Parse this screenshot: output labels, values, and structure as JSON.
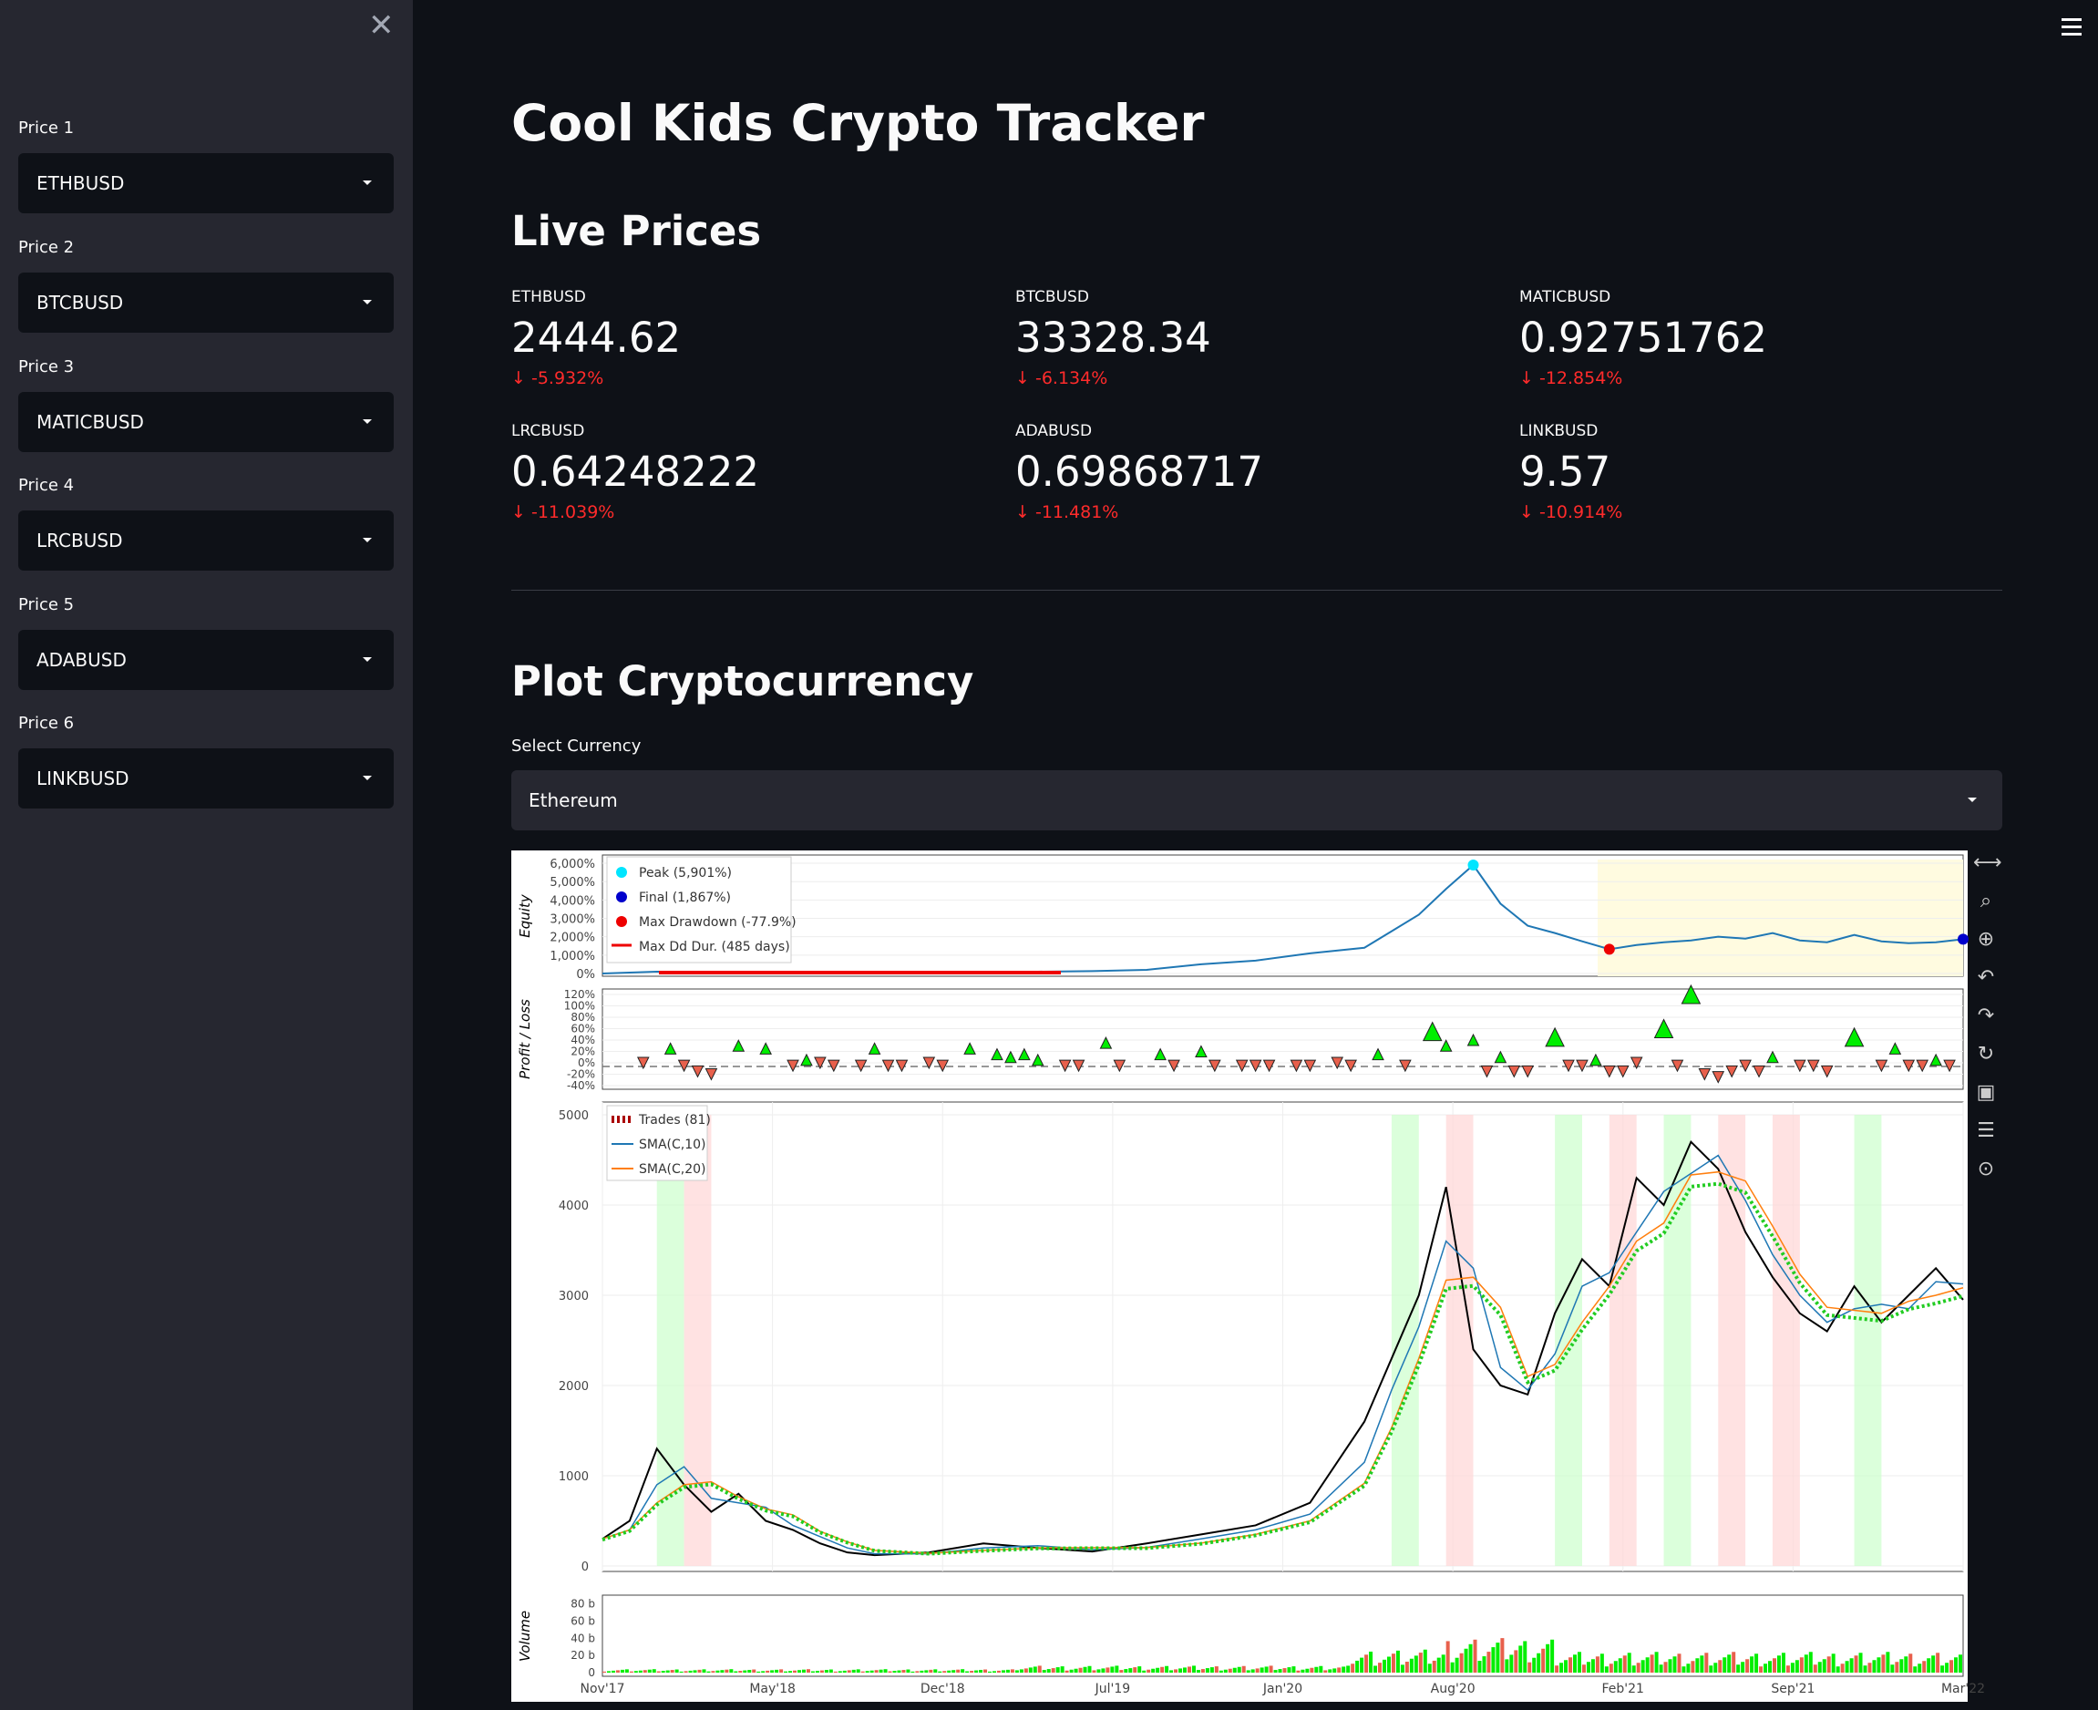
{
  "sidebar": {
    "close_icon": "close-icon",
    "selects": [
      {
        "label": "Price 1",
        "value": "ETHBUSD"
      },
      {
        "label": "Price 2",
        "value": "BTCBUSD"
      },
      {
        "label": "Price 3",
        "value": "MATICBUSD"
      },
      {
        "label": "Price 4",
        "value": "LRCBUSD"
      },
      {
        "label": "Price 5",
        "value": "ADABUSD"
      },
      {
        "label": "Price 6",
        "value": "LINKBUSD"
      }
    ]
  },
  "app": {
    "title": "Cool Kids Crypto Tracker",
    "menu_icon": "hamburger-menu-icon"
  },
  "live_prices": {
    "heading": "Live Prices",
    "metrics": [
      {
        "label": "ETHBUSD",
        "value": "2444.62",
        "delta": "-5.932%"
      },
      {
        "label": "BTCBUSD",
        "value": "33328.34",
        "delta": "-6.134%"
      },
      {
        "label": "MATICBUSD",
        "value": "0.92751762",
        "delta": "-12.854%"
      },
      {
        "label": "LRCBUSD",
        "value": "0.64248222",
        "delta": "-11.039%"
      },
      {
        "label": "ADABUSD",
        "value": "0.69868717",
        "delta": "-11.481%"
      },
      {
        "label": "LINKBUSD",
        "value": "9.57",
        "delta": "-10.914%"
      }
    ],
    "delta_arrow": "↓"
  },
  "plot_section": {
    "heading": "Plot Cryptocurrency",
    "select_label": "Select Currency",
    "select_value": "Ethereum"
  },
  "colors": {
    "bg": "#0e1117",
    "sidebar": "#262730",
    "negative": "#ff2b2b",
    "profit": "#00ee00",
    "loss": "#e8604c",
    "line": "#1f77b4",
    "sma20": "#ff7f0e"
  },
  "chart_data": [
    {
      "type": "line",
      "title": "",
      "ylabel": "Equity",
      "y_ticks": [
        "6,000%",
        "5,000%",
        "4,000%",
        "3,000%",
        "2,000%",
        "1,000%",
        "0%"
      ],
      "ylim": [
        0,
        6200
      ],
      "legend": [
        "Peak (5,901%)",
        "Final (1,867%)",
        "Max Drawdown (-77.9%)",
        "Max Dd Dur. (485 days)"
      ],
      "x": [
        0,
        4,
        8,
        12,
        16,
        20,
        24,
        28,
        32,
        36,
        40,
        44,
        48,
        52,
        56,
        60,
        62,
        64,
        66,
        68,
        70,
        72,
        74,
        76,
        78,
        80,
        82,
        84,
        86,
        88,
        90,
        92,
        94,
        96,
        98,
        100
      ],
      "values": [
        0,
        100,
        90,
        70,
        60,
        60,
        80,
        90,
        100,
        130,
        200,
        500,
        700,
        1100,
        1400,
        3200,
        4600,
        5901,
        3800,
        2600,
        2200,
        1750,
        1320,
        1550,
        1700,
        1800,
        2000,
        1900,
        2200,
        1800,
        1700,
        2100,
        1750,
        1650,
        1700,
        1867
      ]
    },
    {
      "type": "scatter",
      "ylabel": "Profit / Loss",
      "y_ticks": [
        "120%",
        "100%",
        "80%",
        "60%",
        "40%",
        "20%",
        "0%",
        "-20%",
        "-40%"
      ],
      "ylim": [
        -40,
        120
      ]
    },
    {
      "type": "line",
      "series_names": [
        "Trades (81)",
        "SMA(C,10)",
        "SMA(C,20)"
      ],
      "y_ticks": [
        "5000",
        "4000",
        "3000",
        "2000",
        "1000",
        "0"
      ],
      "ylim": [
        0,
        5000
      ],
      "x_ticks": [
        "Nov'17",
        "May'18",
        "Dec'18",
        "Jul'19",
        "Jan'20",
        "Aug'20",
        "Feb'21",
        "Sep'21",
        "Mar'22"
      ],
      "x": [
        0,
        2,
        4,
        6,
        8,
        10,
        12,
        14,
        16,
        18,
        20,
        24,
        28,
        32,
        36,
        40,
        44,
        48,
        52,
        56,
        58,
        60,
        62,
        64,
        66,
        68,
        70,
        72,
        74,
        76,
        78,
        80,
        82,
        84,
        86,
        88,
        90,
        92,
        94,
        96,
        98,
        100
      ],
      "values": [
        300,
        500,
        1300,
        900,
        600,
        800,
        500,
        400,
        250,
        150,
        120,
        150,
        250,
        200,
        160,
        250,
        350,
        450,
        700,
        1600,
        2300,
        3000,
        4200,
        2400,
        2000,
        1900,
        2800,
        3400,
        3100,
        4300,
        4000,
        4700,
        4400,
        3700,
        3200,
        2800,
        2600,
        3100,
        2700,
        3000,
        3300,
        2950
      ]
    },
    {
      "type": "bar",
      "ylabel": "Volume",
      "y_ticks": [
        "80 b",
        "60 b",
        "40 b",
        "20 b",
        "0"
      ],
      "ylim": [
        0,
        85
      ]
    }
  ]
}
